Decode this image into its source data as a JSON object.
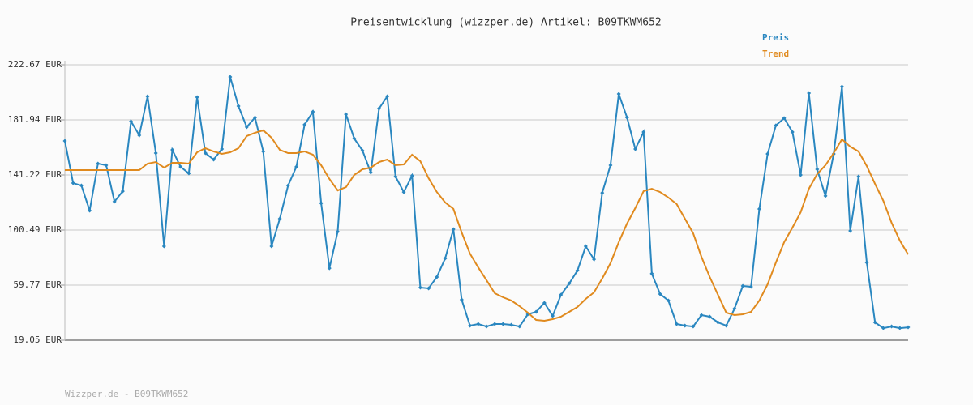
{
  "chart_data": {
    "type": "line",
    "title": "Preisentwicklung (wizzper.de) Artikel: B09TKWM652",
    "footer": "Wizzper.de - B09TKWM652",
    "ylim": [
      19.05,
      222.67
    ],
    "yticks": [
      {
        "value": 19.05,
        "label": "19.05 EUR"
      },
      {
        "value": 59.77,
        "label": "59.77 EUR"
      },
      {
        "value": 100.49,
        "label": "100.49 EUR"
      },
      {
        "value": 141.22,
        "label": "141.22 EUR"
      },
      {
        "value": 181.94,
        "label": "181.94 EUR"
      },
      {
        "value": 222.67,
        "label": "222.67 EUR"
      }
    ],
    "grid": true,
    "legend": "top-right",
    "series": [
      {
        "name": "Preis",
        "color": "#2a87c0",
        "markers": true,
        "values": [
          166.4,
          135.2,
          133.4,
          114.9,
          149.6,
          148.4,
          121.5,
          129.2,
          180.8,
          170.6,
          199.3,
          157.4,
          88.5,
          159.8,
          147.2,
          142.4,
          198.7,
          157.4,
          152.6,
          160.4,
          213.7,
          192.1,
          176.6,
          183.7,
          158.6,
          88.5,
          108.9,
          133.4,
          147.2,
          178.4,
          187.9,
          120.3,
          72.3,
          99.3,
          186.1,
          168.2,
          159.2,
          143.0,
          190.3,
          199.3,
          140.0,
          128.6,
          140.6,
          58.0,
          57.4,
          65.8,
          79.5,
          101.1,
          49.0,
          29.8,
          31.0,
          29.2,
          31.0,
          31.0,
          30.4,
          29.2,
          38.2,
          40.0,
          46.6,
          37.0,
          52.6,
          61.0,
          70.6,
          88.5,
          78.9,
          128.0,
          148.4,
          201.1,
          183.7,
          160.4,
          173.0,
          68.2,
          53.2,
          48.4,
          31.0,
          29.8,
          29.2,
          37.6,
          36.4,
          32.2,
          29.8,
          42.4,
          59.2,
          58.6,
          116.1,
          156.8,
          177.8,
          183.2,
          173.0,
          141.2,
          201.7,
          145.4,
          125.7,
          156.8,
          206.5,
          99.9,
          140.0,
          76.5,
          32.2,
          28.0,
          29.2,
          28.0,
          28.6
        ]
      },
      {
        "name": "Trend",
        "color": "#e08a1e",
        "markers": false,
        "values": [
          144.8,
          144.8,
          144.8,
          144.8,
          144.8,
          144.8,
          144.8,
          144.8,
          144.8,
          144.8,
          149.6,
          150.8,
          146.6,
          150.2,
          150.2,
          149.6,
          158.0,
          161.0,
          158.6,
          156.8,
          158.0,
          161.0,
          170.0,
          172.4,
          174.2,
          168.8,
          159.8,
          157.4,
          157.4,
          158.6,
          156.2,
          148.4,
          138.2,
          129.8,
          132.2,
          141.2,
          145.4,
          146.6,
          150.8,
          152.6,
          148.4,
          149.0,
          156.2,
          151.4,
          138.8,
          128.6,
          120.9,
          116.1,
          98.7,
          83.1,
          72.9,
          63.4,
          53.8,
          50.8,
          48.4,
          44.2,
          39.4,
          34.0,
          33.4,
          34.6,
          36.4,
          40.0,
          43.6,
          49.6,
          54.4,
          64.6,
          76.0,
          91.5,
          105.3,
          116.7,
          129.2,
          131.0,
          128.6,
          124.5,
          119.7,
          108.9,
          98.1,
          80.7,
          65.8,
          52.6,
          39.4,
          37.6,
          38.2,
          40.0,
          48.4,
          60.4,
          76.5,
          91.5,
          102.3,
          113.7,
          131.0,
          141.8,
          148.4,
          157.4,
          167.6,
          162.2,
          158.6,
          147.8,
          134.6,
          122.1,
          105.9,
          92.7,
          82.5
        ]
      }
    ]
  }
}
